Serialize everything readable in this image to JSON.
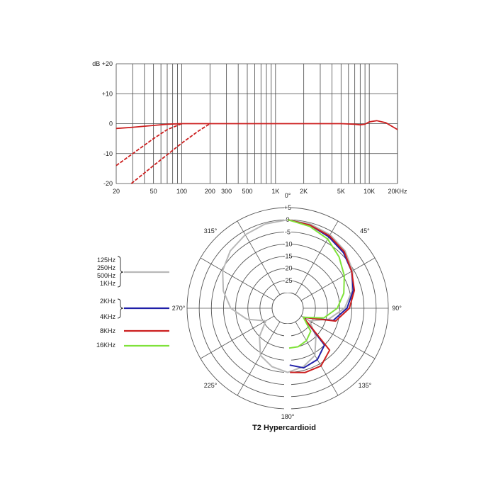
{
  "caption": "T2  Hypercardioid",
  "colors": {
    "frequency_curve": "#cc1f1f",
    "grid": "#444444",
    "polar_grid": "#555555",
    "low_band": "#b8b8b8",
    "mid_band": "#1f1fa8",
    "band_8k": "#cc1f1f",
    "band_16k": "#7fe23a"
  },
  "chart_data": [
    {
      "type": "line",
      "title": "",
      "xlabel": "",
      "ylabel": "dB",
      "xscale": "log",
      "xlim": [
        20,
        20000
      ],
      "ylim": [
        -20,
        20
      ],
      "grid": true,
      "x_tick_labels": [
        "20",
        "50",
        "100",
        "200",
        "300",
        "500",
        "1K",
        "2K",
        "5K",
        "10K",
        "20KHz"
      ],
      "x_tick_values": [
        20,
        50,
        100,
        200,
        300,
        500,
        1000,
        2000,
        5000,
        10000,
        20000
      ],
      "y_tick_labels": [
        "dB  +20",
        "+10",
        "0",
        "-10",
        "-20"
      ],
      "y_tick_values": [
        20,
        10,
        0,
        -10,
        -20
      ],
      "series": [
        {
          "style": "solid",
          "x": [
            20,
            30,
            50,
            70,
            100,
            200,
            500,
            1000,
            2000,
            3000,
            5000,
            7000,
            8000,
            9000,
            10000,
            12000,
            15000,
            20000
          ],
          "y": [
            -1.6,
            -1.2,
            -0.6,
            -0.2,
            0,
            0,
            0,
            0,
            0,
            0,
            0,
            -0.2,
            -0.4,
            -0.2,
            0.6,
            1.0,
            0.3,
            -2.0
          ]
        },
        {
          "style": "dashed",
          "x": [
            20,
            30,
            50,
            70,
            100
          ],
          "y": [
            -14,
            -10,
            -5,
            -2,
            0
          ]
        },
        {
          "style": "dashed",
          "x": [
            29,
            50,
            100,
            150,
            200
          ],
          "y": [
            -20,
            -14,
            -6.5,
            -2.5,
            0
          ]
        }
      ]
    },
    {
      "type": "polar",
      "title": "",
      "angle_labels": [
        "0°",
        "45°",
        "90°",
        "135°",
        "180°",
        "225°",
        "270°",
        "315°"
      ],
      "angle_values": [
        0,
        45,
        90,
        135,
        180,
        225,
        270,
        315
      ],
      "radial_labels": [
        "+5",
        "0",
        "-5",
        "-10",
        "-15",
        "-20",
        "-25"
      ],
      "radial_values": [
        5,
        0,
        -5,
        -10,
        -15,
        -20,
        -25
      ],
      "radial_range": [
        -30,
        5
      ],
      "legend": [
        {
          "label_lines": [
            "125Hz",
            "250Hz",
            "500Hz",
            "1KHz"
          ],
          "color_key": "low_band"
        },
        {
          "label_lines": [
            "2KHz",
            "",
            "4KHz"
          ],
          "color_key": "mid_band"
        },
        {
          "label_lines": [
            "8KHz"
          ],
          "color_key": "band_8k"
        },
        {
          "label_lines": [
            "16KHz"
          ],
          "color_key": "band_16k"
        }
      ],
      "series": [
        {
          "legend_index": 0,
          "angles": [
            0,
            15,
            30,
            45,
            60,
            75,
            90,
            105,
            120,
            135,
            150,
            165,
            180
          ],
          "values": [
            0,
            -0.5,
            -1.5,
            -3,
            -5.5,
            -9,
            -13,
            -19,
            -26,
            -20,
            -14,
            -11.5,
            -10
          ],
          "mirror": true
        },
        {
          "legend_index": 1,
          "angles": [
            0,
            15,
            30,
            45,
            60,
            75,
            90,
            105,
            120,
            135,
            150,
            165,
            178
          ],
          "values": [
            0,
            -1,
            -2.5,
            -4,
            -6,
            -8.5,
            -12,
            -17,
            -29,
            -15,
            -12,
            -11,
            -13
          ]
        },
        {
          "legend_index": 2,
          "angles": [
            0,
            15,
            30,
            45,
            60,
            75,
            90,
            105,
            120,
            135,
            150,
            165,
            178
          ],
          "values": [
            0,
            -1,
            -2,
            -3.5,
            -6,
            -8,
            -11,
            -16,
            -29,
            -12,
            -9,
            -9,
            -10
          ]
        },
        {
          "legend_index": 3,
          "angles": [
            0,
            15,
            30,
            45,
            60,
            75,
            90,
            105,
            120,
            135,
            150,
            165,
            178
          ],
          "values": [
            0,
            -1.5,
            -3.5,
            -6.5,
            -9.5,
            -12.5,
            -16,
            -21,
            -29,
            -23,
            -21,
            -20,
            -20
          ]
        }
      ]
    }
  ]
}
